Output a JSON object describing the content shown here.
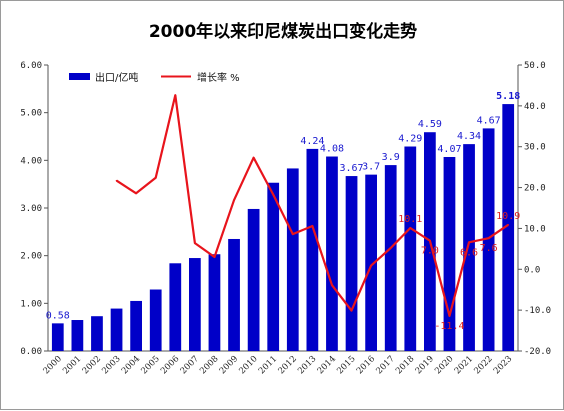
{
  "chart_data": {
    "type": "bar",
    "title": "2000年以来印尼煤炭出口变化走势",
    "categories": [
      "2000",
      "2001",
      "2002",
      "2003",
      "2004",
      "2005",
      "2006",
      "2007",
      "2008",
      "2009",
      "2010",
      "2011",
      "2012",
      "2013",
      "2014",
      "2015",
      "2016",
      "2017",
      "2018",
      "2019",
      "2020",
      "2021",
      "2022",
      "2023"
    ],
    "y_left": {
      "ylim": [
        0,
        6
      ],
      "ticks": [
        "0.00",
        "1.00",
        "2.00",
        "3.00",
        "4.00",
        "5.00",
        "6.00"
      ]
    },
    "y_right": {
      "ylim": [
        -20,
        50
      ],
      "ticks": [
        "-20.0",
        "-10.0",
        "0.0",
        "10.0",
        "20.0",
        "30.0",
        "40.0",
        "50.0"
      ]
    },
    "legend_placement": "top-left",
    "series": [
      {
        "name": "出口/亿吨",
        "type": "bar",
        "axis": "left",
        "color": "#0000c8",
        "values": [
          0.58,
          0.65,
          0.73,
          0.89,
          1.05,
          1.29,
          1.84,
          1.95,
          2.03,
          2.35,
          2.98,
          3.53,
          3.83,
          4.24,
          4.08,
          3.67,
          3.7,
          3.9,
          4.29,
          4.59,
          4.07,
          4.34,
          4.67,
          5.18
        ]
      },
      {
        "name": "增长率 %",
        "type": "line",
        "axis": "right",
        "color": "#e8141c",
        "values": [
          null,
          null,
          null,
          21.7,
          18.6,
          22.4,
          42.6,
          6.4,
          3.0,
          16.9,
          27.3,
          18.3,
          8.6,
          10.6,
          -3.9,
          -10.1,
          0.9,
          5.2,
          10.1,
          7.0,
          -11.4,
          6.6,
          7.6,
          10.9
        ]
      }
    ],
    "bar_labels": [
      {
        "index": 0,
        "text": "0.58"
      },
      {
        "index": 13,
        "text": "4.24"
      },
      {
        "index": 14,
        "text": "4.08"
      },
      {
        "index": 15,
        "text": "3.67"
      },
      {
        "index": 16,
        "text": "3.7"
      },
      {
        "index": 17,
        "text": "3.9"
      },
      {
        "index": 18,
        "text": "4.29"
      },
      {
        "index": 19,
        "text": "4.59"
      },
      {
        "index": 20,
        "text": "4.07"
      },
      {
        "index": 21,
        "text": "4.34"
      },
      {
        "index": 22,
        "text": "4.67"
      },
      {
        "index": 23,
        "text": "5.18",
        "bold": true
      }
    ],
    "line_labels": [
      {
        "index": 18,
        "text": "10.1"
      },
      {
        "index": 19,
        "text": "7.0"
      },
      {
        "index": 20,
        "text": "-11.4"
      },
      {
        "index": 21,
        "text": "6.6"
      },
      {
        "index": 22,
        "text": "7.6"
      },
      {
        "index": 23,
        "text": "10.9"
      }
    ]
  }
}
